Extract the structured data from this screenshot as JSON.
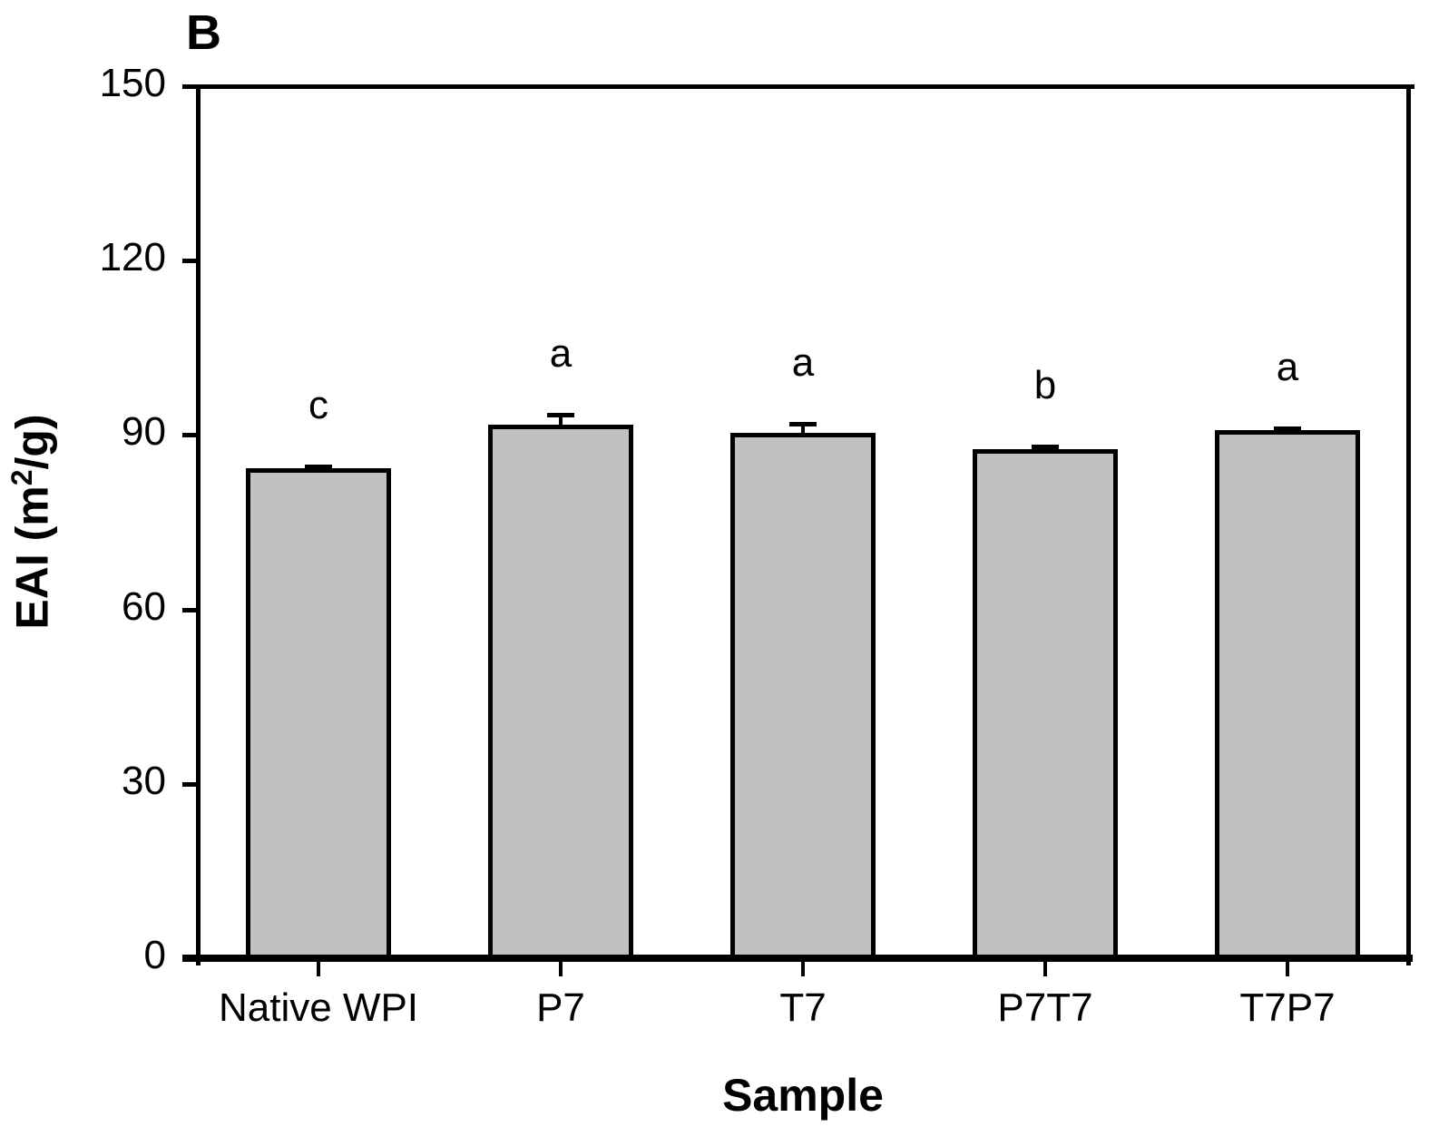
{
  "panel_label": "B",
  "chart_data": {
    "type": "bar",
    "title": "",
    "xlabel": "Sample",
    "ylabel": "EAI (m2/g)",
    "ylabel_parts": {
      "pre": "EAI (m",
      "sup": "2",
      "post": "/g)"
    },
    "categories": [
      "Native WPI",
      "P7",
      "T7",
      "P7T7",
      "T7P7"
    ],
    "values": [
      84,
      91.5,
      90,
      87.2,
      90.5
    ],
    "errors_upper": [
      0.6,
      2.0,
      1.9,
      0.8,
      0.7
    ],
    "significance_letters": [
      "c",
      "a",
      "a",
      "b",
      "a"
    ],
    "yticks": [
      0,
      30,
      60,
      90,
      120,
      150
    ],
    "ylim": [
      0,
      150
    ],
    "grid": false,
    "legend_position": "none",
    "bar_fill": "#c1c1c1",
    "line_color": "#000000",
    "background_color": "#ffffff"
  }
}
